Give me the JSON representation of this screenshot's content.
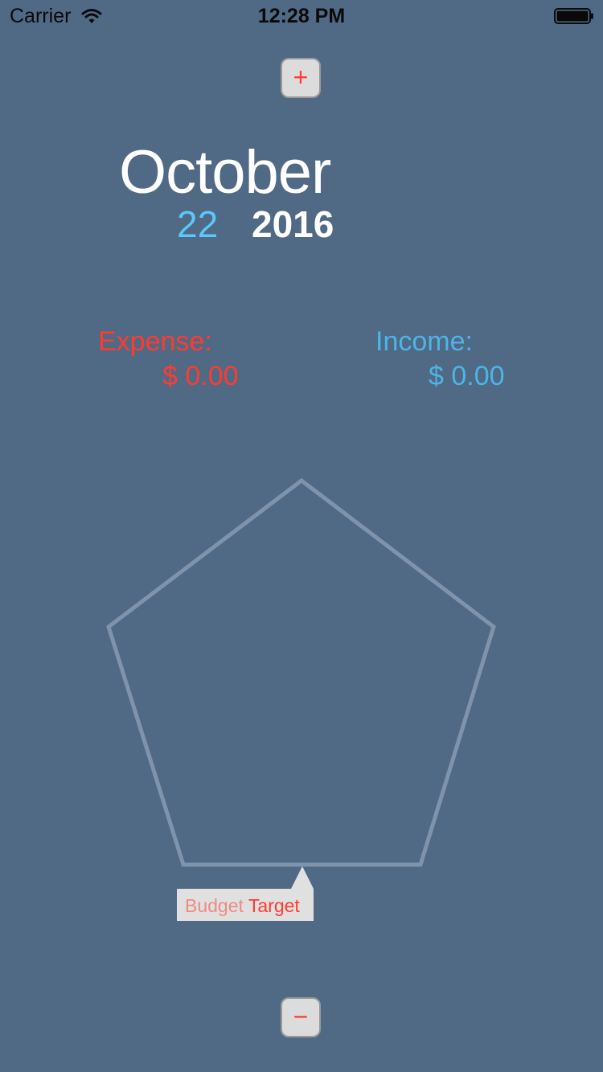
{
  "status_bar": {
    "carrier": "Carrier",
    "time": "12:28 PM",
    "wifi_icon": "wifi-icon",
    "battery_icon": "battery-icon"
  },
  "controls": {
    "add_label": "+",
    "remove_label": "−"
  },
  "date": {
    "month": "October",
    "day": "22",
    "year": "2016"
  },
  "totals": {
    "expense_label": "Expense:",
    "expense_value": "$ 0.00",
    "income_label": "Income:",
    "income_value": "$ 0.00"
  },
  "budget": {
    "label_part1": "Budget",
    "label_part2": "Target"
  },
  "colors": {
    "background": "#506985",
    "expense": "#ff3b30",
    "income": "#4db4e6",
    "day": "#5ac8fa",
    "pentagon_stroke": "#7f94ab"
  }
}
